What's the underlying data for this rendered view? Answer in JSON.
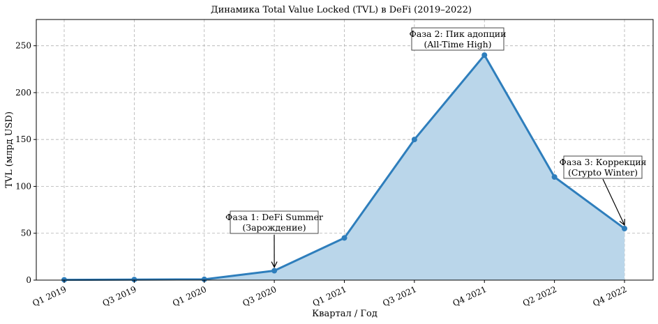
{
  "chart_data": {
    "type": "area",
    "title": "Динамика Total Value Locked (TVL) в DeFi (2019–2022)",
    "xlabel": "Квартал / Год",
    "ylabel": "TVL (млрд USD)",
    "ylim": [
      0,
      278
    ],
    "yticks": [
      0,
      50,
      100,
      150,
      200,
      250
    ],
    "grid": true,
    "x": [
      "Q1 2019",
      "Q3 2019",
      "Q1 2020",
      "Q3 2020",
      "Q1 2021",
      "Q3 2021",
      "Q4 2021",
      "Q2 2022",
      "Q4 2022"
    ],
    "series": [
      {
        "values": [
          0.3,
          0.6,
          0.8,
          10,
          45,
          150,
          240,
          110,
          55
        ],
        "color": "#2e7ebc",
        "fill": "#bad6ea"
      }
    ],
    "annotations": [
      {
        "lines": [
          "Фаза 1: DeFi Summer",
          "(Зарождение)"
        ],
        "target_index": 3
      },
      {
        "lines": [
          "Фаза 2: Пик адопции",
          "(All-Time High)"
        ],
        "target_index": 6
      },
      {
        "lines": [
          "Фаза 3: Коррекция",
          "(Crypto Winter)"
        ],
        "target_index": 8
      }
    ]
  }
}
